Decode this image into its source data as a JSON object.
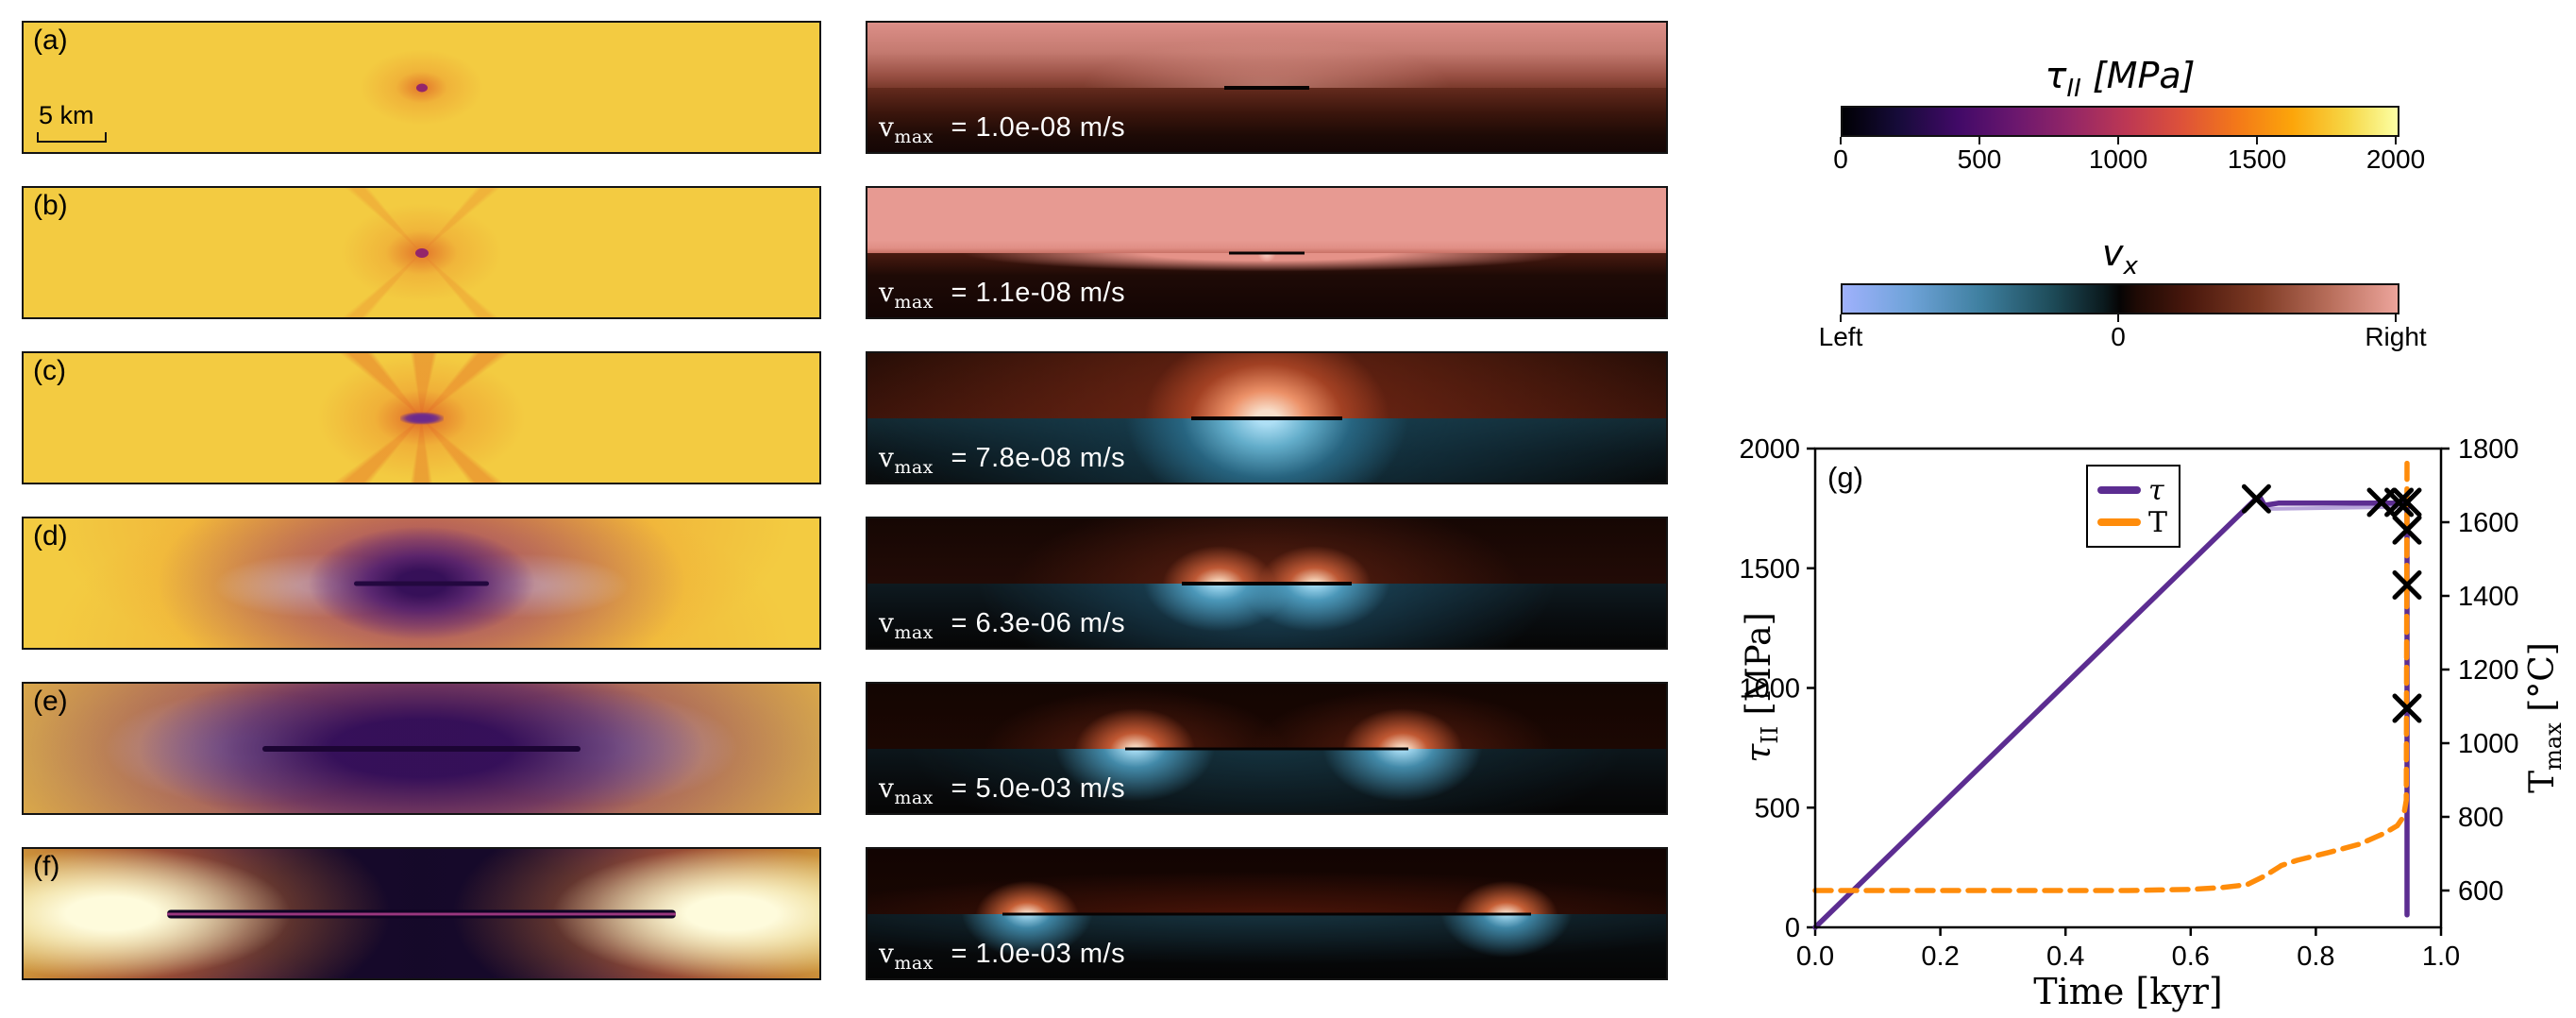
{
  "colors": {
    "tau_line": "#5c2d91",
    "tau_line_light": "#b7a4da",
    "T_line": "#ff8c0a",
    "marker": "#000000",
    "panel_yellow": "#f3cb41",
    "vx_pink_right": "#e89b93",
    "vx_blue_left": "#9fb1fc"
  },
  "colorbars": {
    "tau": {
      "title_symbol": "τ",
      "title_sub": "II",
      "title_unit": " [MPa]",
      "ticks": [
        "0",
        "500",
        "1000",
        "1500",
        "2000"
      ]
    },
    "vx": {
      "title_symbol": "v",
      "title_sub": "x",
      "ticks": [
        "Left",
        "0",
        "Right"
      ]
    }
  },
  "left_panels": [
    {
      "label": "(a)",
      "scalebar_label": "5 km"
    },
    {
      "label": "(b)"
    },
    {
      "label": "(c)"
    },
    {
      "label": "(d)"
    },
    {
      "label": "(e)"
    },
    {
      "label": "(f)"
    }
  ],
  "middle_panels": [
    {
      "vmax_symbol": "v",
      "vmax_sub": "max",
      "vmax_value": "= 1.0e-08 m/s"
    },
    {
      "vmax_symbol": "v",
      "vmax_sub": "max",
      "vmax_value": "= 1.1e-08 m/s"
    },
    {
      "vmax_symbol": "v",
      "vmax_sub": "max",
      "vmax_value": "= 7.8e-08 m/s"
    },
    {
      "vmax_symbol": "v",
      "vmax_sub": "max",
      "vmax_value": "= 6.3e-06 m/s"
    },
    {
      "vmax_symbol": "v",
      "vmax_sub": "max",
      "vmax_value": "= 5.0e-03 m/s"
    },
    {
      "vmax_symbol": "v",
      "vmax_sub": "max",
      "vmax_value": "= 1.0e-03 m/s"
    }
  ],
  "chart_data": {
    "type": "line",
    "label": "(g)",
    "xlabel": "Time [kyr]",
    "ylabel_left": {
      "symbol": "τ",
      "sub": "II",
      "unit": " [MPa]"
    },
    "ylabel_right": {
      "symbol": "T",
      "sub": "max",
      "unit": " [°C]"
    },
    "xlim": [
      0,
      1
    ],
    "ylim_left": [
      0,
      2000
    ],
    "ylim_right": [
      500,
      1800
    ],
    "grid": false,
    "legend_position": "upper center",
    "x_ticks": [
      {
        "v": 0.0,
        "label": "0.0"
      },
      {
        "v": 0.2,
        "label": "0.2"
      },
      {
        "v": 0.4,
        "label": "0.4"
      },
      {
        "v": 0.6,
        "label": "0.6"
      },
      {
        "v": 0.8,
        "label": "0.8"
      },
      {
        "v": 1.0,
        "label": "1.0"
      }
    ],
    "y_ticks_left": [
      {
        "v": 0,
        "label": "0"
      },
      {
        "v": 500,
        "label": "500"
      },
      {
        "v": 1000,
        "label": "1000"
      },
      {
        "v": 1500,
        "label": "1500"
      },
      {
        "v": 2000,
        "label": "2000"
      }
    ],
    "y_ticks_right": [
      {
        "v": 600,
        "label": "600"
      },
      {
        "v": 800,
        "label": "800"
      },
      {
        "v": 1000,
        "label": "1000"
      },
      {
        "v": 1200,
        "label": "1200"
      },
      {
        "v": 1400,
        "label": "1400"
      },
      {
        "v": 1600,
        "label": "1600"
      },
      {
        "v": 1800,
        "label": "1800"
      }
    ],
    "legend": [
      {
        "label": "τ",
        "color": "#5c2d91"
      },
      {
        "label": "T",
        "color": "#ff8c0a"
      }
    ],
    "series": [
      {
        "name": "tau-underlay",
        "axis": "left",
        "color": "#b7a4da",
        "width": 4,
        "style": "solid",
        "points": [
          [
            0.72,
            1748
          ],
          [
            0.9457,
            1757
          ]
        ]
      },
      {
        "name": "tau",
        "axis": "left",
        "color": "#5c2d91",
        "width": 5.5,
        "style": "solid",
        "points": [
          [
            0,
            0
          ],
          [
            0.703,
            1787
          ],
          [
            0.71,
            1800
          ],
          [
            0.718,
            1763
          ],
          [
            0.74,
            1772
          ],
          [
            0.9457,
            1772
          ],
          [
            0.9457,
            52
          ]
        ]
      },
      {
        "name": "T",
        "axis": "right",
        "color": "#ff8c0a",
        "width": 5.5,
        "style": "dashed",
        "points": [
          [
            0,
            600
          ],
          [
            0.5,
            600
          ],
          [
            0.6,
            603
          ],
          [
            0.65,
            608
          ],
          [
            0.69,
            616
          ],
          [
            0.72,
            641
          ],
          [
            0.745,
            668
          ],
          [
            0.77,
            682
          ],
          [
            0.82,
            703
          ],
          [
            0.87,
            726
          ],
          [
            0.91,
            756
          ],
          [
            0.93,
            776
          ],
          [
            0.94,
            800
          ],
          [
            0.9445,
            845
          ],
          [
            0.9457,
            1760
          ]
        ]
      }
    ],
    "markers": {
      "style": "x",
      "color": "#000000",
      "size": 13,
      "points": [
        [
          0.705,
          1790
        ],
        [
          0.905,
          1775
        ],
        [
          0.933,
          1775
        ],
        [
          0.9457,
          1775
        ],
        [
          0.9457,
          1660
        ],
        [
          0.9457,
          1430
        ],
        [
          0.9457,
          915
        ]
      ]
    }
  }
}
